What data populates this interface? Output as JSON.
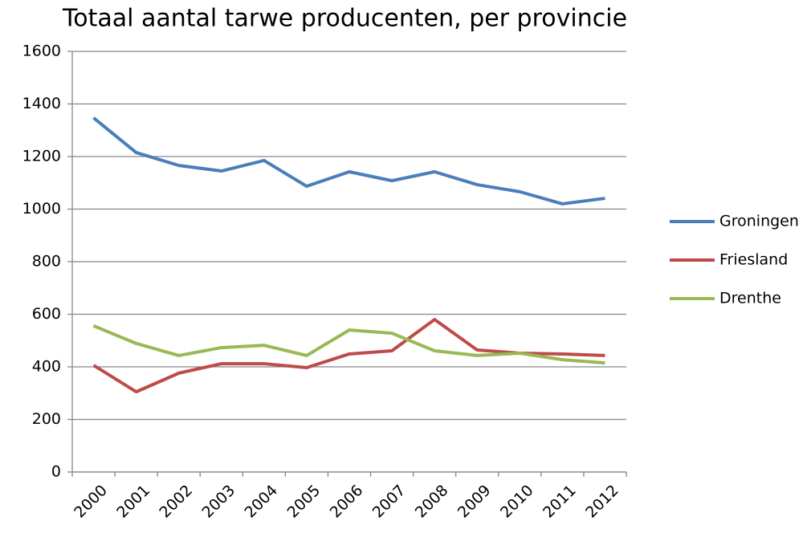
{
  "chart_data": {
    "type": "line",
    "title": "Totaal aantal tarwe producenten, per provincie",
    "categories": [
      "2000",
      "2001",
      "2002",
      "2003",
      "2004",
      "2005",
      "2006",
      "2007",
      "2008",
      "2009",
      "2010",
      "2011",
      "2012"
    ],
    "series": [
      {
        "name": "Groningen",
        "color": "#4a7ebb",
        "values": [
          1347,
          1215,
          1166,
          1145,
          1185,
          1087,
          1142,
          1108,
          1142,
          1093,
          1066,
          1020,
          1041
        ]
      },
      {
        "name": "Friesland",
        "color": "#be4b48",
        "values": [
          406,
          305,
          376,
          412,
          412,
          397,
          449,
          461,
          580,
          464,
          452,
          449,
          443
        ]
      },
      {
        "name": "Drenthe",
        "color": "#98b954",
        "values": [
          556,
          489,
          443,
          473,
          482,
          443,
          540,
          528,
          461,
          443,
          452,
          427,
          415
        ]
      }
    ],
    "ylim": [
      0,
      1600
    ],
    "yticks": [
      0,
      200,
      400,
      600,
      800,
      1000,
      1200,
      1400,
      1600
    ],
    "grid": true,
    "legend": "right"
  }
}
